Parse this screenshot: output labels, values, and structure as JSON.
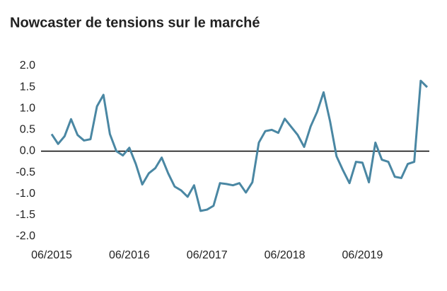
{
  "chart_data": {
    "type": "line",
    "title": "Nowcaster de tensions sur le marché",
    "categories": [
      "06/2015",
      null,
      null,
      null,
      null,
      null,
      null,
      null,
      null,
      null,
      null,
      null,
      "06/2016",
      null,
      null,
      null,
      null,
      null,
      null,
      null,
      null,
      null,
      null,
      null,
      "06/2017",
      null,
      null,
      null,
      null,
      null,
      null,
      null,
      null,
      null,
      null,
      null,
      "06/2018",
      null,
      null,
      null,
      null,
      null,
      null,
      null,
      null,
      null,
      null,
      null,
      "06/2019",
      null,
      null,
      null,
      null,
      null,
      null,
      null,
      null,
      null,
      null
    ],
    "series": [
      {
        "color": "#4a87a3",
        "values": [
          0.4,
          0.17,
          0.35,
          0.75,
          0.38,
          0.25,
          0.28,
          1.05,
          1.32,
          0.4,
          0.0,
          -0.1,
          0.08,
          -0.3,
          -0.78,
          -0.52,
          -0.4,
          -0.15,
          -0.52,
          -0.83,
          -0.92,
          -1.07,
          -0.8,
          -1.4,
          -1.37,
          -1.28,
          -0.75,
          -0.77,
          -0.8,
          -0.75,
          -0.97,
          -0.73,
          0.2,
          0.47,
          0.5,
          0.43,
          0.76,
          0.57,
          0.38,
          0.1,
          0.58,
          0.92,
          1.38,
          0.7,
          -0.12,
          -0.45,
          -0.75,
          -0.25,
          -0.27,
          -0.73,
          0.2,
          -0.2,
          -0.25,
          -0.6,
          -0.63,
          -0.3,
          -0.25,
          1.65,
          1.5
        ]
      }
    ],
    "ylim": [
      -2,
      2
    ],
    "yticks": [
      {
        "value": 2,
        "label": "2.0"
      },
      1.5,
      {
        "value": 1,
        "label": "1.0"
      },
      0.5,
      {
        "value": 0,
        "label": "0.0"
      },
      -0.5,
      {
        "value": -1,
        "label": "-1.0"
      },
      -1.5,
      {
        "value": -2,
        "label": "-2.0"
      }
    ],
    "grid": false
  }
}
